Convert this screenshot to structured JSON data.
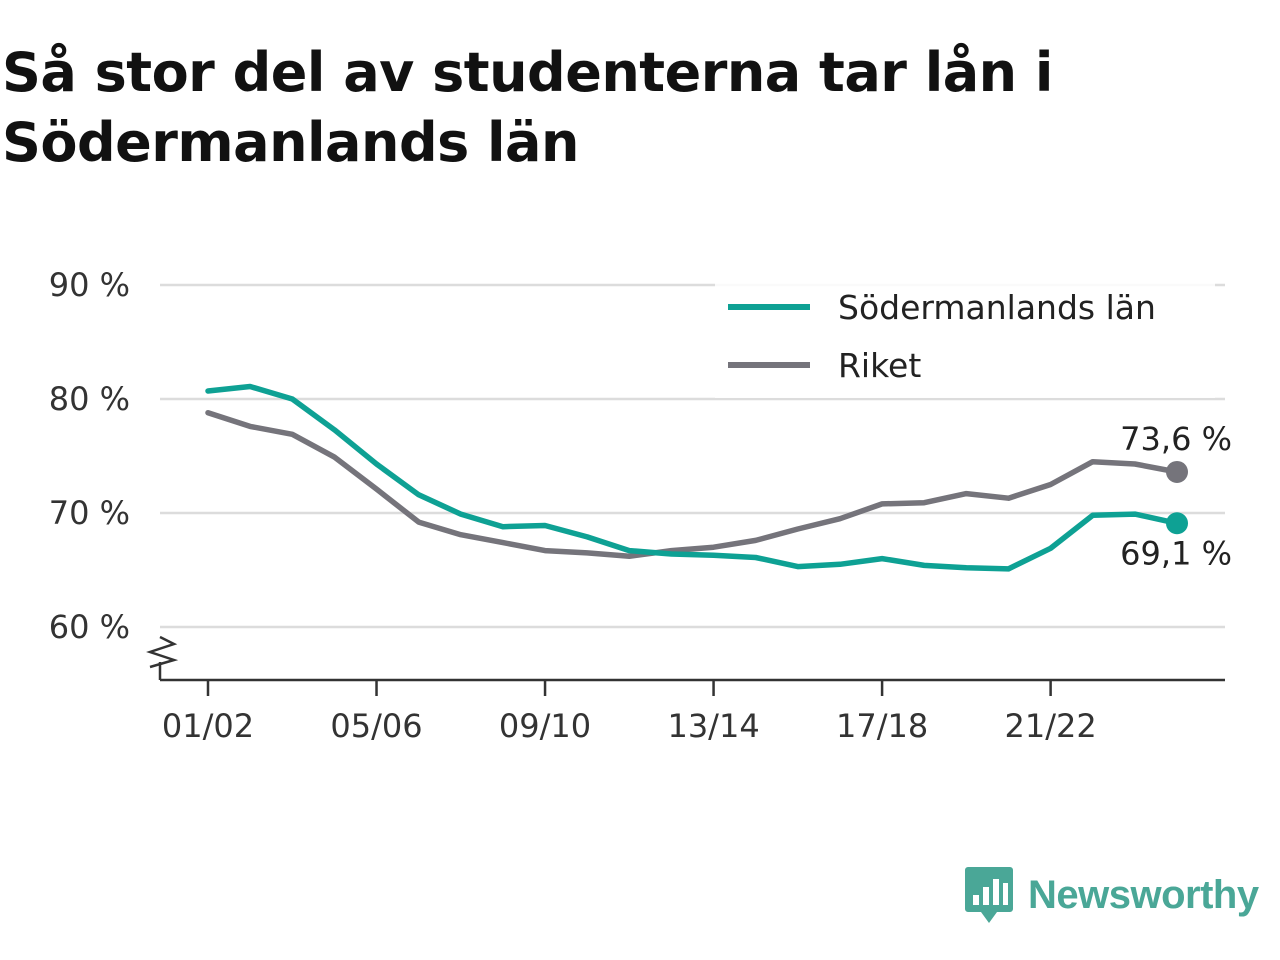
{
  "title": "Så stor del av studenterna tar lån i Södermanlands län",
  "logo": {
    "text": "Newsworthy",
    "icon": "newsworthy-chart-bubble-icon",
    "color": "#4aa797"
  },
  "chart_data": {
    "type": "line",
    "title": "Så stor del av studenterna tar lån i Södermanlands län",
    "xlabel": "",
    "ylabel": "",
    "ylim": [
      55.5,
      90
    ],
    "y_ticks": [
      60,
      70,
      80,
      90
    ],
    "y_tick_labels": [
      "60 %",
      "70 %",
      "80 %",
      "90 %"
    ],
    "y_axis_break": true,
    "x": [
      "01/02",
      "02/03",
      "03/04",
      "04/05",
      "05/06",
      "06/07",
      "07/08",
      "08/09",
      "09/10",
      "10/11",
      "11/12",
      "12/13",
      "13/14",
      "14/15",
      "15/16",
      "16/17",
      "17/18",
      "18/19",
      "19/20",
      "20/21",
      "21/22",
      "22/23",
      "23/24",
      "24/25"
    ],
    "x_tick_labels": [
      "01/02",
      "05/06",
      "09/10",
      "13/14",
      "17/18",
      "21/22"
    ],
    "grid": true,
    "legend_position": "top-right",
    "series": [
      {
        "name": "Södermanlands län",
        "color": "#0ea194",
        "values": [
          80.7,
          81.1,
          80.0,
          77.3,
          74.3,
          71.6,
          69.9,
          68.8,
          68.9,
          67.9,
          66.7,
          66.4,
          66.3,
          66.1,
          65.3,
          65.5,
          66.0,
          65.4,
          65.2,
          65.1,
          66.9,
          69.8,
          69.9,
          69.1
        ],
        "end_label": "69,1 %"
      },
      {
        "name": "Riket",
        "color": "#75747b",
        "values": [
          78.8,
          77.6,
          76.9,
          74.9,
          72.1,
          69.2,
          68.1,
          67.4,
          66.7,
          66.5,
          66.2,
          66.7,
          67.0,
          67.6,
          68.6,
          69.5,
          70.8,
          70.9,
          71.7,
          71.3,
          72.5,
          74.5,
          74.3,
          73.6
        ],
        "end_label": "73,6 %"
      }
    ]
  }
}
